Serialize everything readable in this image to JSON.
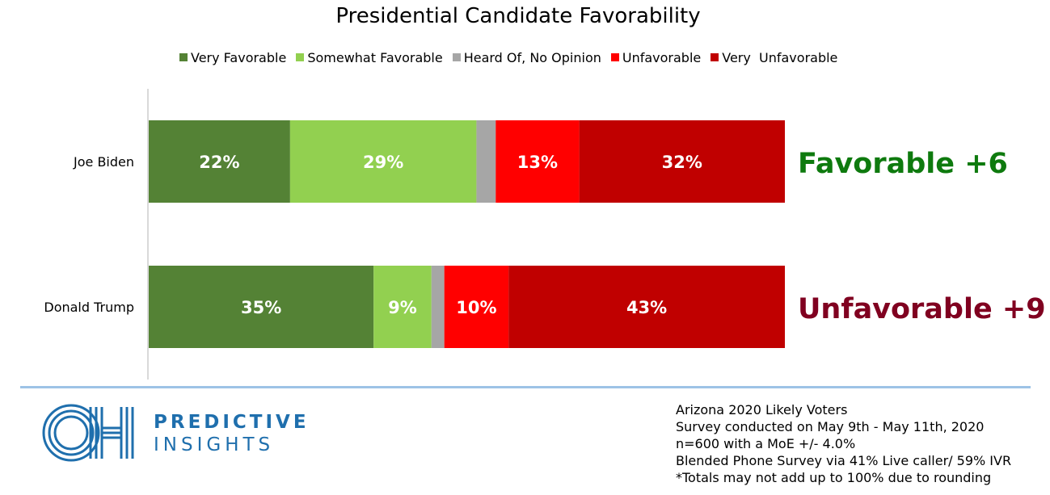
{
  "chart_data": {
    "type": "bar",
    "orientation": "horizontal-stacked",
    "title": "Presidential Candidate Favorability",
    "categories": [
      "Joe Biden",
      "Donald Trump"
    ],
    "series": [
      {
        "name": "Very Favorable",
        "color": "#548235",
        "values": [
          22,
          35
        ],
        "labels": [
          "22%",
          "35%"
        ]
      },
      {
        "name": "Somewhat Favorable",
        "color": "#92d050",
        "values": [
          29,
          9
        ],
        "labels": [
          "29%",
          "9%"
        ]
      },
      {
        "name": "Heard Of, No Opinion",
        "color": "#a6a6a6",
        "values": [
          3,
          2
        ],
        "labels": [
          "",
          ""
        ]
      },
      {
        "name": "Unfavorable",
        "color": "#ff0000",
        "values": [
          13,
          10
        ],
        "labels": [
          "13%",
          "10%"
        ]
      },
      {
        "name": "Very  Unfavorable",
        "color": "#c00000",
        "values": [
          32,
          43
        ],
        "labels": [
          "32%",
          "43%"
        ]
      }
    ],
    "xlim": [
      0,
      99
    ],
    "legend_position": "top",
    "grid": false,
    "annotations": [
      {
        "category": "Joe Biden",
        "text": "Favorable +6",
        "color": "#0e7a0e"
      },
      {
        "category": "Donald Trump",
        "text": "Unfavorable +9",
        "color": "#800020"
      }
    ]
  },
  "footer": {
    "logo": {
      "icon": "oh-monogram-logo",
      "line1": "PREDICTIVE",
      "line2": "INSIGHTS",
      "color": "#1f6fad"
    },
    "notes": [
      "Arizona 2020 Likely Voters",
      "Survey conducted on May 9th - May 11th, 2020",
      "n=600 with a MoE +/- 4.0%",
      "Blended Phone Survey via 41% Live caller/ 59% IVR",
      "*Totals may not add up to 100% due to rounding"
    ]
  }
}
